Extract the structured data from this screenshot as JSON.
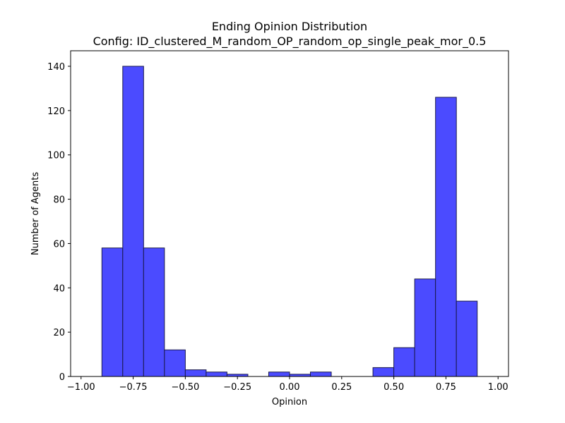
{
  "chart_data": {
    "type": "bar",
    "title": "Ending Opinion Distribution",
    "subtitle": "Config: ID_clustered_M_random_OP_random_op_single_peak_mor_0.5",
    "xlabel": "Opinion",
    "ylabel": "Number of Agents",
    "xlim": [
      -1.05,
      1.05
    ],
    "ylim": [
      0,
      147
    ],
    "x_ticks": [
      -1.0,
      -0.75,
      -0.5,
      -0.25,
      0.0,
      0.25,
      0.5,
      0.75,
      1.0
    ],
    "x_tick_labels": [
      "−1.00",
      "−0.75",
      "−0.50",
      "−0.25",
      "0.00",
      "0.25",
      "0.50",
      "0.75",
      "1.00"
    ],
    "y_ticks": [
      0,
      20,
      40,
      60,
      80,
      100,
      120,
      140
    ],
    "y_tick_labels": [
      "0",
      "20",
      "40",
      "60",
      "80",
      "100",
      "120",
      "140"
    ],
    "bin_edges": [
      -0.9,
      -0.8,
      -0.7,
      -0.6,
      -0.5,
      -0.4,
      -0.3,
      -0.2,
      -0.1,
      0.0,
      0.1,
      0.2,
      0.3,
      0.4,
      0.5,
      0.6,
      0.7,
      0.8,
      0.9
    ],
    "values": [
      58,
      140,
      58,
      12,
      3,
      2,
      1,
      0,
      2,
      1,
      2,
      0,
      0,
      4,
      13,
      44,
      126,
      34
    ],
    "bar_color": "#4b4bff",
    "bar_edge_color": "#1a1a4d",
    "grid": false,
    "legend": false
  }
}
